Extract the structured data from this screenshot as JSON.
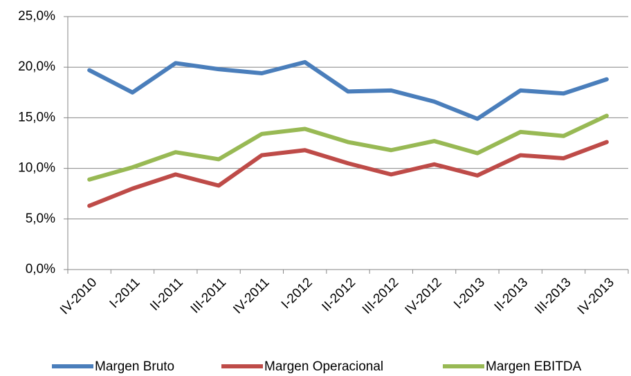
{
  "chart_data": {
    "type": "line",
    "categories": [
      "IV-2010",
      "I-2011",
      "II-2011",
      "III-2011",
      "IV-2011",
      "I-2012",
      "II-2012",
      "III-2012",
      "IV-2012",
      "I-2013",
      "II-2013",
      "III-2013",
      "IV-2013"
    ],
    "series": [
      {
        "name": "Margen Bruto",
        "color": "#4a7ebb",
        "values": [
          19.7,
          17.5,
          20.4,
          19.8,
          19.4,
          20.5,
          17.6,
          17.7,
          16.6,
          14.9,
          17.7,
          17.4,
          18.8
        ]
      },
      {
        "name": "Margen Operacional",
        "color": "#be4b48",
        "values": [
          6.3,
          8.0,
          9.4,
          8.3,
          11.3,
          11.8,
          10.5,
          9.4,
          10.4,
          9.3,
          11.3,
          11.0,
          12.6
        ]
      },
      {
        "name": "Margen EBITDA",
        "color": "#98b954",
        "values": [
          8.9,
          10.1,
          11.6,
          10.9,
          13.4,
          13.9,
          12.6,
          11.8,
          12.7,
          11.5,
          13.6,
          13.2,
          15.2
        ]
      }
    ],
    "ylim": [
      0,
      25
    ],
    "yticks": [
      {
        "value": 0,
        "label": "0,0%"
      },
      {
        "value": 5,
        "label": "5,0%"
      },
      {
        "value": 10,
        "label": "10,0%"
      },
      {
        "value": 15,
        "label": "15,0%"
      },
      {
        "value": 20,
        "label": "20,0%"
      },
      {
        "value": 25,
        "label": "25,0%"
      }
    ],
    "grid": true,
    "legend": "bottom"
  }
}
